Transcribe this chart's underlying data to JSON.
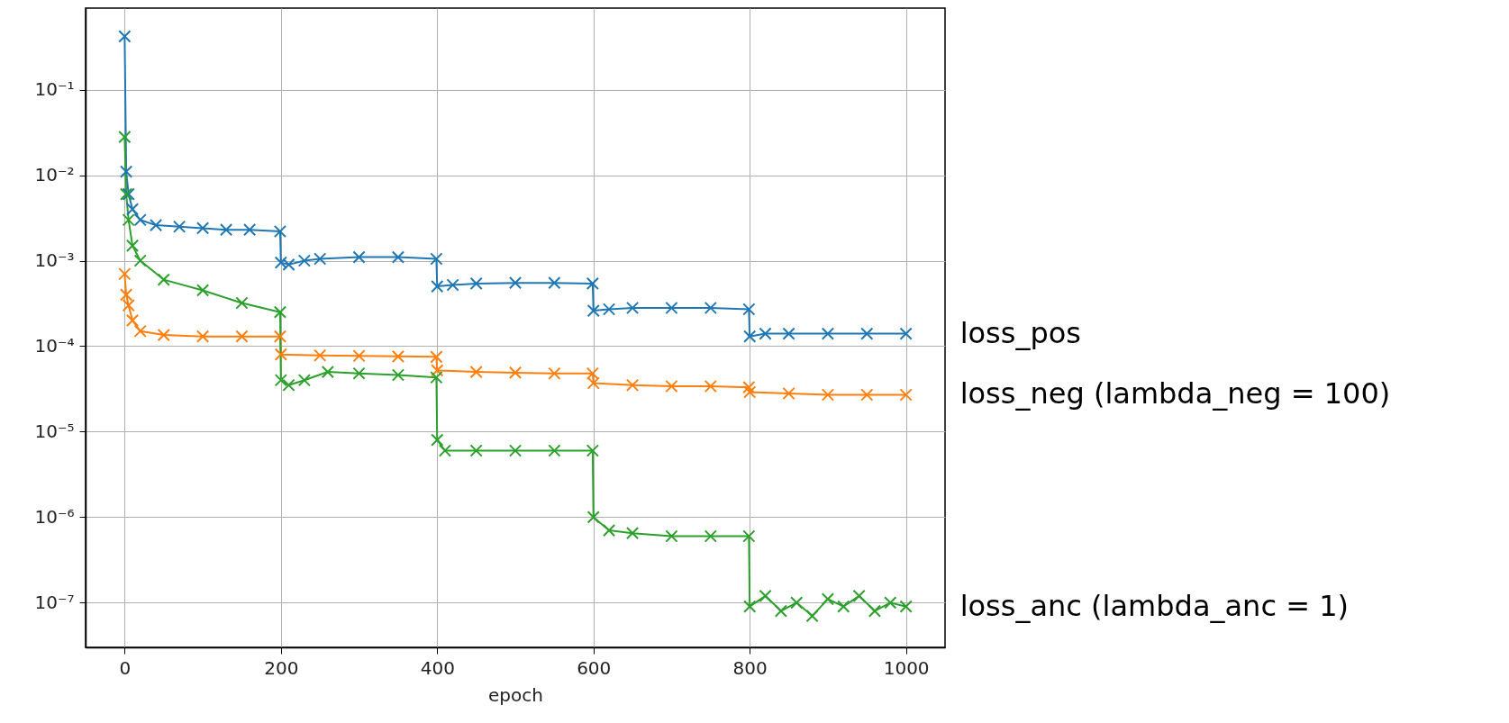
{
  "chart_data": {
    "type": "line",
    "xlabel": "epoch",
    "log": "y",
    "grid": true,
    "marker": "cross",
    "line_style": "solid",
    "xlim": [
      -50,
      1050
    ],
    "xticks": [
      0,
      200,
      400,
      600,
      800,
      1000
    ],
    "ylim": [
      3e-08,
      0.9
    ],
    "yticks": [
      {
        "value": 1e-07,
        "label": "10⁻⁷"
      },
      {
        "value": 1e-06,
        "label": "10⁻⁶"
      },
      {
        "value": 1e-05,
        "label": "10⁻⁵"
      },
      {
        "value": 0.0001,
        "label": "10⁻⁴"
      },
      {
        "value": 0.001,
        "label": "10⁻³"
      },
      {
        "value": 0.01,
        "label": "10⁻²"
      },
      {
        "value": 0.1,
        "label": "10⁻¹"
      }
    ],
    "series": [
      {
        "name": "loss_pos",
        "color": "#1f77b4",
        "x": [
          0,
          2,
          5,
          10,
          20,
          40,
          70,
          100,
          130,
          160,
          199,
          200,
          210,
          230,
          250,
          300,
          350,
          399,
          400,
          420,
          450,
          500,
          550,
          599,
          600,
          620,
          650,
          700,
          750,
          799,
          800,
          820,
          850,
          900,
          950,
          1000
        ],
        "values": [
          0.42,
          0.011,
          0.006,
          0.004,
          0.003,
          0.0026,
          0.0025,
          0.0024,
          0.0023,
          0.0023,
          0.0022,
          0.00095,
          0.0009,
          0.001,
          0.00105,
          0.0011,
          0.0011,
          0.00105,
          0.0005,
          0.00052,
          0.00054,
          0.00055,
          0.00055,
          0.00054,
          0.00026,
          0.00027,
          0.00028,
          0.00028,
          0.00028,
          0.00027,
          0.00013,
          0.00014,
          0.00014,
          0.00014,
          0.00014,
          0.00014
        ]
      },
      {
        "name": "loss_neg (lambda_neg = 100)",
        "color": "#ff7f0e",
        "x": [
          0,
          2,
          5,
          10,
          20,
          50,
          100,
          150,
          199,
          200,
          250,
          300,
          350,
          399,
          400,
          450,
          500,
          550,
          599,
          600,
          650,
          700,
          750,
          799,
          800,
          850,
          900,
          950,
          1000
        ],
        "values": [
          0.0007,
          0.0004,
          0.0003,
          0.0002,
          0.00015,
          0.000135,
          0.00013,
          0.00013,
          0.00013,
          8e-05,
          7.8e-05,
          7.7e-05,
          7.6e-05,
          7.5e-05,
          5.2e-05,
          5e-05,
          4.9e-05,
          4.8e-05,
          4.8e-05,
          3.7e-05,
          3.5e-05,
          3.4e-05,
          3.4e-05,
          3.3e-05,
          2.9e-05,
          2.8e-05,
          2.7e-05,
          2.7e-05,
          2.7e-05
        ]
      },
      {
        "name": "loss_anc (lambda_anc = 1)",
        "color": "#2ca02c",
        "x": [
          0,
          2,
          5,
          10,
          20,
          50,
          100,
          150,
          199,
          200,
          210,
          230,
          260,
          300,
          350,
          399,
          400,
          410,
          450,
          500,
          550,
          599,
          600,
          620,
          650,
          700,
          750,
          799,
          800,
          820,
          840,
          860,
          880,
          900,
          920,
          940,
          960,
          980,
          1000
        ],
        "values": [
          0.028,
          0.006,
          0.003,
          0.0015,
          0.001,
          0.0006,
          0.00045,
          0.00032,
          0.00025,
          4e-05,
          3.5e-05,
          4e-05,
          5e-05,
          4.8e-05,
          4.6e-05,
          4.3e-05,
          8e-06,
          6e-06,
          6e-06,
          6e-06,
          6e-06,
          6e-06,
          1e-06,
          7e-07,
          6.5e-07,
          6e-07,
          6e-07,
          6e-07,
          9e-08,
          1.2e-07,
          8e-08,
          1e-07,
          7e-08,
          1.1e-07,
          9e-08,
          1.2e-07,
          8e-08,
          1e-07,
          9e-08
        ]
      }
    ]
  }
}
